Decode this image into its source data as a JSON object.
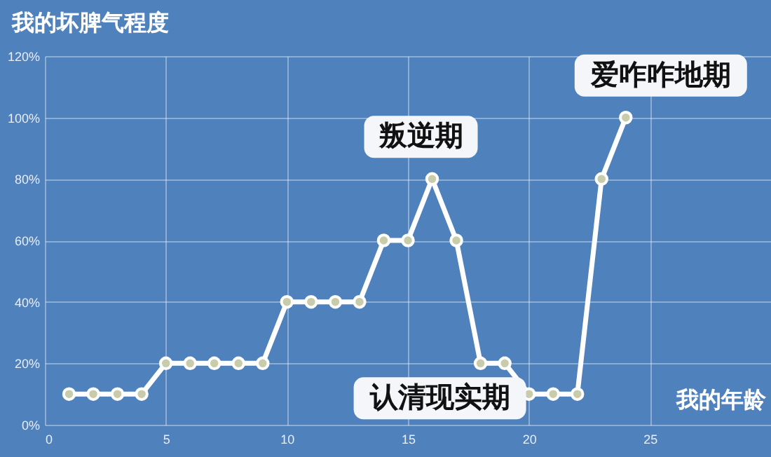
{
  "chart_data": {
    "type": "line",
    "ylabel": "我的坏脾气程度",
    "xlabel": "我的年龄",
    "x": [
      1,
      2,
      3,
      4,
      5,
      6,
      7,
      8,
      9,
      10,
      11,
      12,
      13,
      14,
      15,
      16,
      17,
      18,
      19,
      20,
      21,
      22,
      23,
      24
    ],
    "series": [
      {
        "color": "#ffffff",
        "values": [
          10,
          10,
          10,
          10,
          20,
          20,
          20,
          20,
          20,
          40,
          40,
          40,
          40,
          60,
          60,
          80,
          60,
          20,
          20,
          10,
          10,
          10,
          80,
          100
        ]
      }
    ],
    "xlim": [
      0,
      30
    ],
    "xticks": [
      0,
      5,
      10,
      15,
      20,
      25
    ],
    "ylim": [
      0,
      120
    ],
    "yticks": [
      {
        "value": 0,
        "label": "0%"
      },
      {
        "value": 20,
        "label": "20%"
      },
      {
        "value": 40,
        "label": "40%"
      },
      {
        "value": 60,
        "label": "60%"
      },
      {
        "value": 80,
        "label": "80%"
      },
      {
        "value": 100,
        "label": "100%"
      },
      {
        "value": 120,
        "label": "120%"
      }
    ],
    "grid": true,
    "marker": "circle",
    "line_style": "solid",
    "annotations": [
      {
        "text": "叛逆期",
        "x": 16,
        "y": 80
      },
      {
        "text": "爱咋咋地期",
        "x": 24,
        "y": 100
      },
      {
        "text": "认清现实期",
        "x": 18,
        "y": 20
      }
    ]
  }
}
